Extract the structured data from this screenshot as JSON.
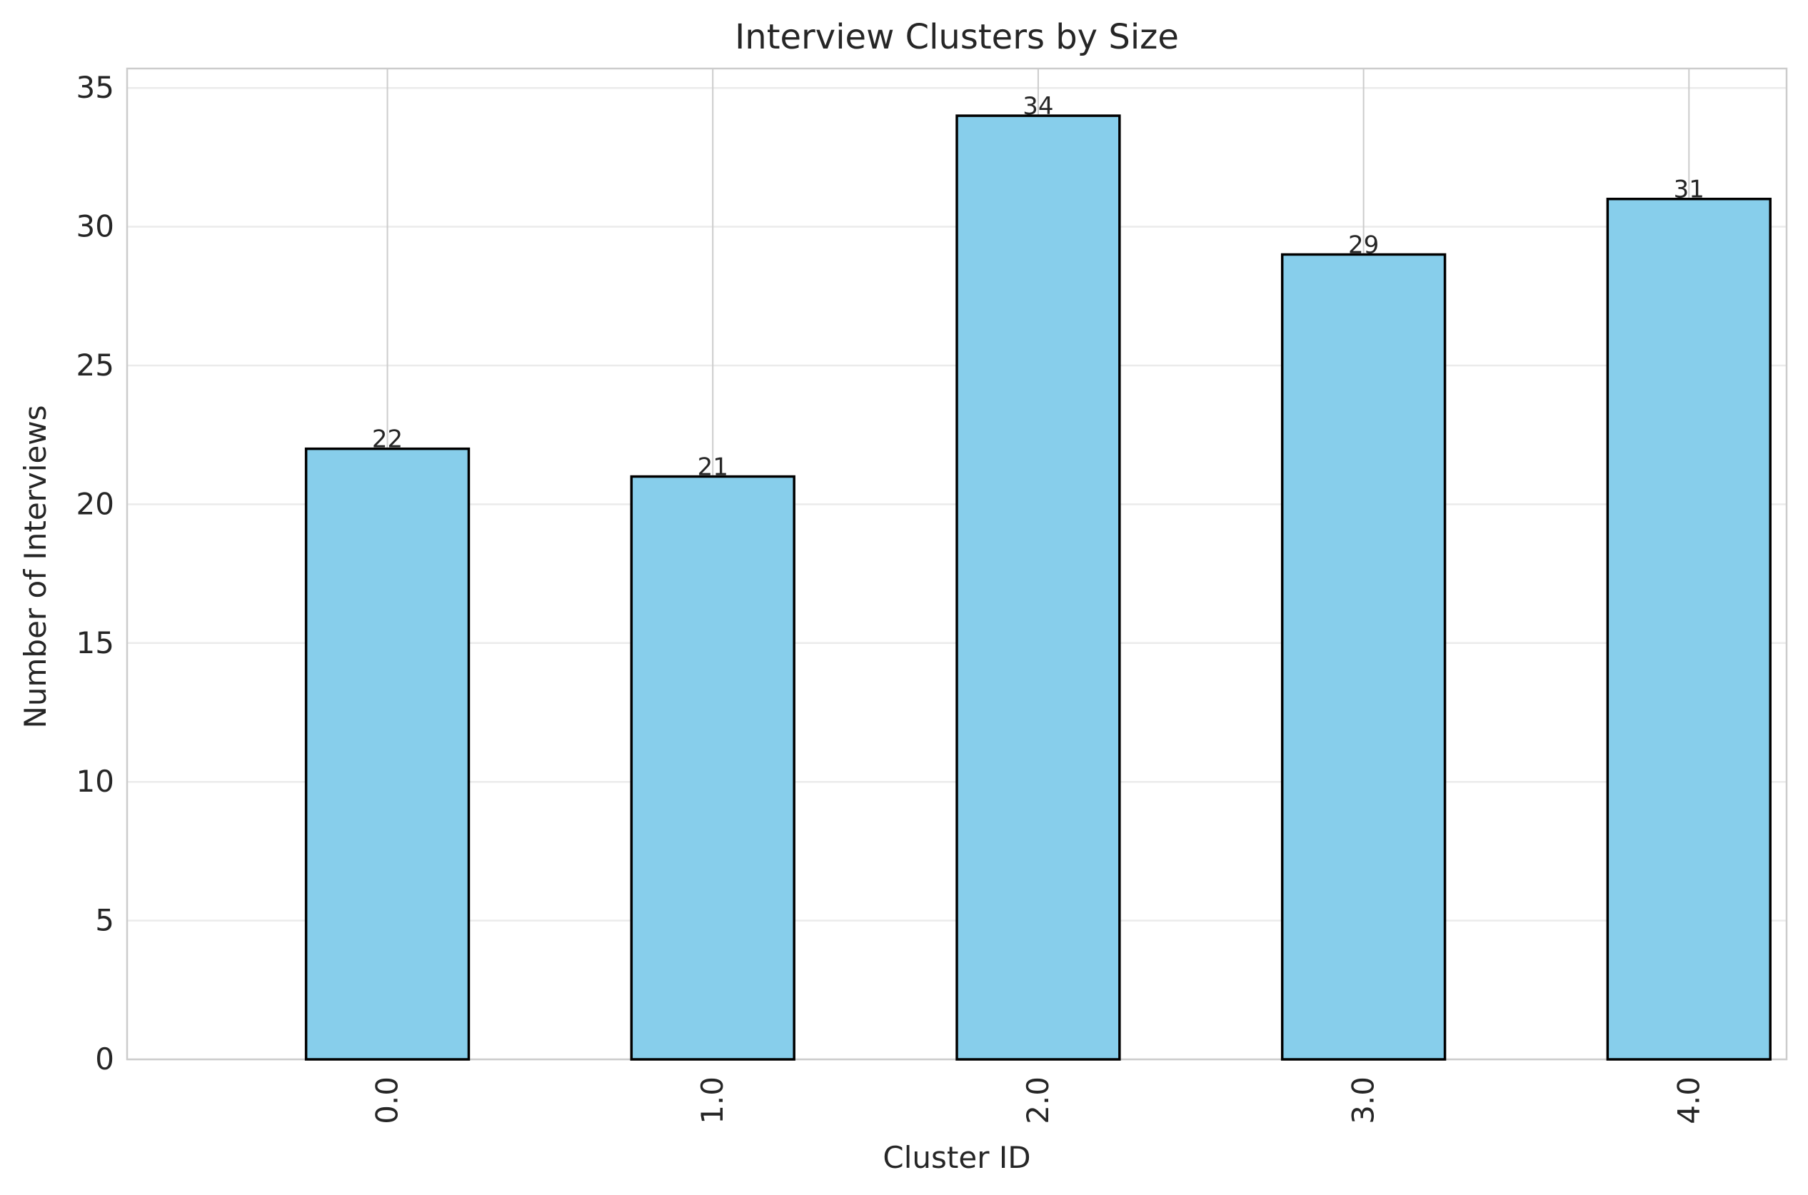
{
  "chart_data": {
    "type": "bar",
    "title": "Interview Clusters by Size",
    "xlabel": "Cluster ID",
    "ylabel": "Number of Interviews",
    "categories": [
      "0.0",
      "1.0",
      "2.0",
      "3.0",
      "4.0"
    ],
    "values": [
      22,
      21,
      34,
      29,
      31
    ],
    "data_labels": [
      "22",
      "21",
      "34",
      "29",
      "31"
    ],
    "ylim": [
      0,
      35.7
    ],
    "yticks": [
      0,
      5,
      10,
      15,
      20,
      25,
      30,
      35
    ],
    "grid": true,
    "legend": "none",
    "bar_color": "#87CEEB",
    "bar_edge_color": "#000000",
    "grid_color": "#EBEBEB",
    "vertical_grid_color": "#CCCCCC",
    "spine_color": "#CCCCCC"
  }
}
